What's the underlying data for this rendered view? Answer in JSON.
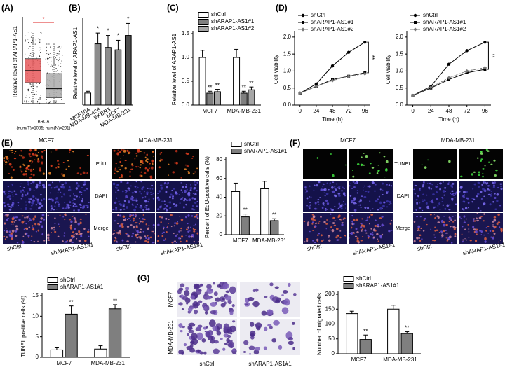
{
  "panel_labels": [
    "(A)",
    "(B)",
    "(C)",
    "(D)",
    "(E)",
    "(F)",
    "(G)"
  ],
  "chart_data": [
    {
      "type": "box",
      "ylabel": "Relative level of ARAP1-AS1",
      "xlabel": "BRCA",
      "note": "(num(T)=1085; num(N)=291)",
      "ylim": [
        0,
        14
      ],
      "significance": "*",
      "boxes": [
        {
          "color": "#e8585a",
          "values": [
            0,
            3.5,
            5.5,
            7.5,
            12
          ]
        },
        {
          "color": "#aaaaaa",
          "values": [
            0,
            1,
            2.5,
            5,
            10
          ]
        }
      ]
    },
    {
      "type": "bar",
      "ylabel": "Relative level of ARAP1-AS1",
      "categories": [
        "MCF10A",
        "MDA-MB-468",
        "SKBR3",
        "MCF7",
        "MDA-MB-231"
      ],
      "values": [
        1.0,
        5.1,
        4.8,
        4.6,
        5.8
      ],
      "errors": [
        0.15,
        0.9,
        1.0,
        0.8,
        1.0
      ],
      "colors": [
        "#ffffff",
        "#8c8c8c",
        "#8c8c8c",
        "#8c8c8c",
        "#4d4d4d"
      ],
      "significance": [
        null,
        "*",
        "*",
        "*",
        "*"
      ],
      "ylim": [
        0,
        7
      ]
    },
    {
      "type": "grouped_bar",
      "ylabel": "Relative level of ARAP1-AS1",
      "categories": [
        "MCF7",
        "MDA-MB-231"
      ],
      "ylim": [
        0,
        1.5
      ],
      "yticks": [
        {
          "value": 0,
          "label": "0.0"
        },
        0.5,
        {
          "value": 1,
          "label": "1.0"
        },
        1.5
      ],
      "series": [
        {
          "name": "shCtrl",
          "color": "#ffffff",
          "values": [
            1.0,
            1.0
          ],
          "errors": [
            0.15,
            0.17
          ]
        },
        {
          "name": "shARAP1-AS1#1",
          "color": "#7f7f7f",
          "values": [
            0.25,
            0.25
          ],
          "errors": [
            0.04,
            0.04
          ],
          "significance": [
            "**",
            "**"
          ]
        },
        {
          "name": "shARAP1-AS1#2",
          "color": "#a6a6a6",
          "values": [
            0.28,
            0.32
          ],
          "errors": [
            0.05,
            0.06
          ],
          "significance": [
            "**",
            "**"
          ]
        }
      ]
    },
    {
      "type": "line",
      "xlabel": "Time (h)",
      "ylabel": "Cell viability",
      "x": [
        0,
        24,
        48,
        72,
        96
      ],
      "xlim": [
        -8,
        104
      ],
      "xticks": [
        0,
        24,
        48,
        72,
        96
      ],
      "ylim": [
        0,
        2.1
      ],
      "yticks": [
        {
          "value": 0,
          "label": "0.0"
        },
        0.5,
        {
          "value": 1,
          "label": "1.0"
        },
        1.5,
        {
          "value": 2,
          "label": "2.0"
        }
      ],
      "significance": "**",
      "series": [
        {
          "name": "shCtrl",
          "color": "#000000",
          "marker": "circle",
          "values": [
            0.35,
            0.62,
            1.15,
            1.55,
            1.85
          ]
        },
        {
          "name": "shARAP1-AS1#1",
          "color": "#000000",
          "marker": "square",
          "values": [
            0.35,
            0.55,
            0.75,
            0.85,
            0.95
          ]
        },
        {
          "name": "shARAP1-AS1#2",
          "color": "#777777",
          "marker": "diamond",
          "values": [
            0.35,
            0.55,
            0.72,
            0.85,
            0.92
          ]
        }
      ]
    },
    {
      "type": "line",
      "xlabel": "Time (h)",
      "ylabel": "Cell viability",
      "x": [
        0,
        24,
        48,
        72,
        96
      ],
      "xlim": [
        -8,
        104
      ],
      "xticks": [
        0,
        24,
        48,
        72,
        96
      ],
      "ylim": [
        0,
        2.1
      ],
      "yticks": [
        {
          "value": 0,
          "label": "0.0"
        },
        0.5,
        {
          "value": 1,
          "label": "1.0"
        },
        1.5,
        {
          "value": 2,
          "label": "2.0"
        }
      ],
      "significance": "**",
      "series": [
        {
          "name": "shCtrl",
          "color": "#000000",
          "marker": "circle",
          "values": [
            0.28,
            0.55,
            1.2,
            1.6,
            1.85
          ]
        },
        {
          "name": "shARAP1-AS1#1",
          "color": "#000000",
          "marker": "square",
          "values": [
            0.28,
            0.5,
            0.75,
            0.95,
            1.05
          ]
        },
        {
          "name": "shARAP1-AS1#2",
          "color": "#777777",
          "marker": "diamond",
          "values": [
            0.28,
            0.52,
            0.8,
            1.0,
            1.1
          ]
        }
      ]
    },
    {
      "type": "grouped_bar",
      "ylabel": "Percent of EdU-positive cells (%)",
      "categories": [
        "MCF7",
        "MDA-MB-231"
      ],
      "ylim": [
        0,
        80
      ],
      "yticks": [
        0,
        20,
        40,
        60,
        80
      ],
      "series": [
        {
          "name": "shCtrl",
          "color": "#ffffff",
          "values": [
            46,
            49
          ],
          "errors": [
            9,
            8
          ]
        },
        {
          "name": "shARAP1-AS1#1",
          "color": "#7f7f7f",
          "values": [
            19,
            15
          ],
          "errors": [
            3,
            2
          ],
          "significance": [
            "**",
            "**"
          ]
        }
      ]
    },
    {
      "type": "grouped_bar",
      "ylabel": "TUNEL positive cells (%)",
      "categories": [
        "MCF7",
        "MDA-MB-231"
      ],
      "ylim": [
        0,
        15
      ],
      "yticks": [
        0,
        5,
        10,
        15
      ],
      "series": [
        {
          "name": "shCtrl",
          "color": "#ffffff",
          "values": [
            1.8,
            2.0
          ],
          "errors": [
            0.5,
            0.8
          ]
        },
        {
          "name": "shARAP1-AS1#1",
          "color": "#7f7f7f",
          "values": [
            10.5,
            11.8
          ],
          "errors": [
            2,
            1
          ],
          "significance": [
            "**",
            "**"
          ]
        }
      ]
    },
    {
      "type": "grouped_bar",
      "ylabel": "Number of migrated cells",
      "categories": [
        "MCF7",
        "MDA-MB-231"
      ],
      "ylim": [
        0,
        200
      ],
      "yticks": [
        0,
        50,
        100,
        150,
        200
      ],
      "series": [
        {
          "name": "shCtrl",
          "color": "#ffffff",
          "values": [
            135,
            150
          ],
          "errors": [
            8,
            13
          ]
        },
        {
          "name": "shARAP1-AS1#1",
          "color": "#7f7f7f",
          "values": [
            48,
            68
          ],
          "errors": [
            15,
            6
          ],
          "significance": [
            "**",
            "**"
          ]
        }
      ]
    }
  ],
  "images": {
    "E": {
      "columns": [
        "MCF7",
        "MDA-MB-231"
      ],
      "rows": [
        "EdU",
        "DAPI",
        "Merge"
      ],
      "conditions": [
        "shCtrl",
        "shARAP1-AS1#1"
      ]
    },
    "F": {
      "columns": [
        "MCF7",
        "MDA-MB-231"
      ],
      "rows": [
        "TUNEL",
        "DAPI",
        "Merge"
      ],
      "conditions": [
        "shCtrl",
        "shARAP1-AS1#1"
      ]
    },
    "G": {
      "rows": [
        "MCF7",
        "MDA-MB-231"
      ],
      "conditions": [
        "shCtrl",
        "shARAP1-AS1#1"
      ]
    }
  }
}
